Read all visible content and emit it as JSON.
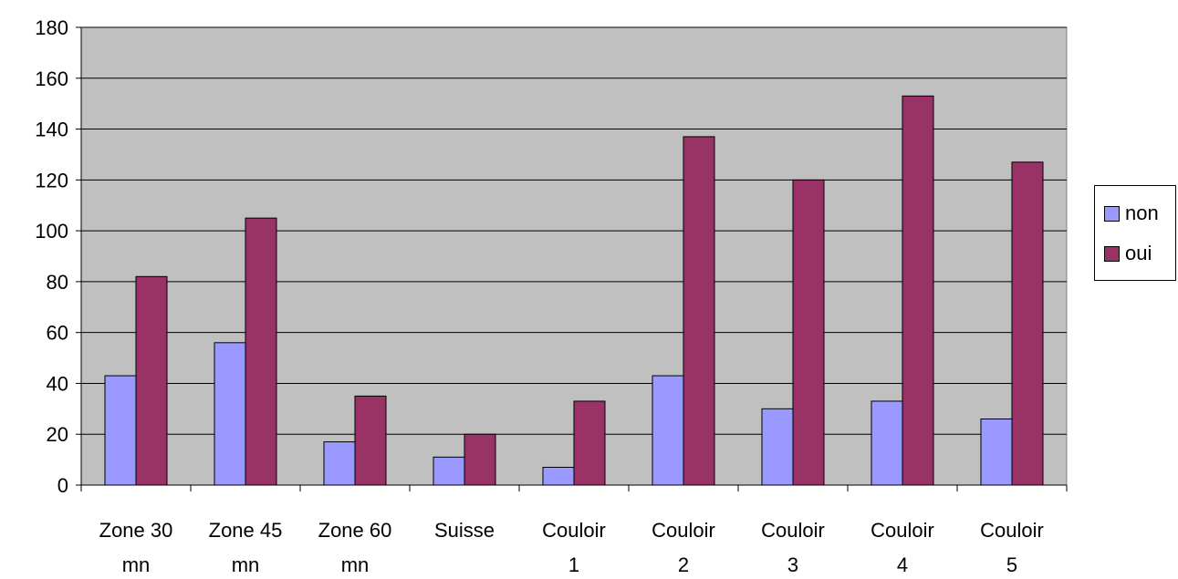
{
  "chart_data": {
    "type": "bar",
    "categories": [
      [
        "Zone 30",
        "mn"
      ],
      [
        "Zone 45",
        "mn"
      ],
      [
        "Zone 60",
        "mn"
      ],
      [
        "Suisse",
        ""
      ],
      [
        "Couloir",
        "1"
      ],
      [
        "Couloir",
        "2"
      ],
      [
        "Couloir",
        "3"
      ],
      [
        "Couloir",
        "4"
      ],
      [
        "Couloir",
        "5"
      ]
    ],
    "series": [
      {
        "name": "non",
        "color": "#9999ff",
        "values": [
          43,
          56,
          17,
          11,
          7,
          43,
          30,
          33,
          26
        ]
      },
      {
        "name": "oui",
        "color": "#993366",
        "values": [
          82,
          105,
          35,
          20,
          33,
          137,
          120,
          153,
          127
        ]
      }
    ],
    "ylim": [
      0,
      180
    ],
    "yticks": [
      "0",
      "20",
      "40",
      "60",
      "80",
      "100",
      "120",
      "140",
      "160",
      "180"
    ],
    "grid": true,
    "plot_background": "#c0c0c0",
    "legend_position": "right"
  }
}
